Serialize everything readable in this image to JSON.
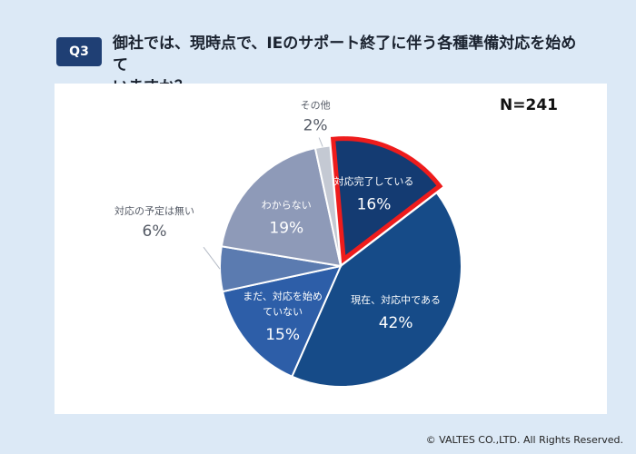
{
  "question": {
    "badge": "Q3",
    "line1": "御社では、現時点で、IEのサポート終了に伴う各種準備対応を始めて",
    "line2": "いますか？"
  },
  "chart_data": {
    "type": "pie",
    "title": "御社では、現時点で、IEのサポート終了に伴う各種準備対応を始めていますか？",
    "n_label": "N=241",
    "start_angle_deg": -5,
    "direction": "clockwise",
    "slices": [
      {
        "name": "対応完了している",
        "lines": [
          "対応完了している"
        ],
        "value": 16,
        "pct_label": "16%",
        "color": "#143b72",
        "highlight": true,
        "label_placement": "inside"
      },
      {
        "name": "現在、対応中である",
        "lines": [
          "現在、対応中である"
        ],
        "value": 42,
        "pct_label": "42%",
        "color": "#164b88",
        "highlight": false,
        "label_placement": "inside"
      },
      {
        "name": "まだ、対応を始めていない",
        "lines": [
          "まだ、対応を始め",
          "ていない"
        ],
        "value": 15,
        "pct_label": "15%",
        "color": "#2d5ea8",
        "highlight": false,
        "label_placement": "inside"
      },
      {
        "name": "対応の予定は無い",
        "lines": [
          "対応の予定は無い"
        ],
        "value": 6,
        "pct_label": "6%",
        "color": "#5b7bb0",
        "highlight": false,
        "label_placement": "outside"
      },
      {
        "name": "わからない",
        "lines": [
          "わからない"
        ],
        "value": 19,
        "pct_label": "19%",
        "color": "#8e9ab8",
        "highlight": false,
        "label_placement": "inside"
      },
      {
        "name": "その他",
        "lines": [
          "その他"
        ],
        "value": 2,
        "pct_label": "2%",
        "color": "#c4c9d3",
        "highlight": false,
        "label_placement": "outside"
      }
    ]
  },
  "footer": "© VALTES CO.,LTD. All Rights Reserved."
}
